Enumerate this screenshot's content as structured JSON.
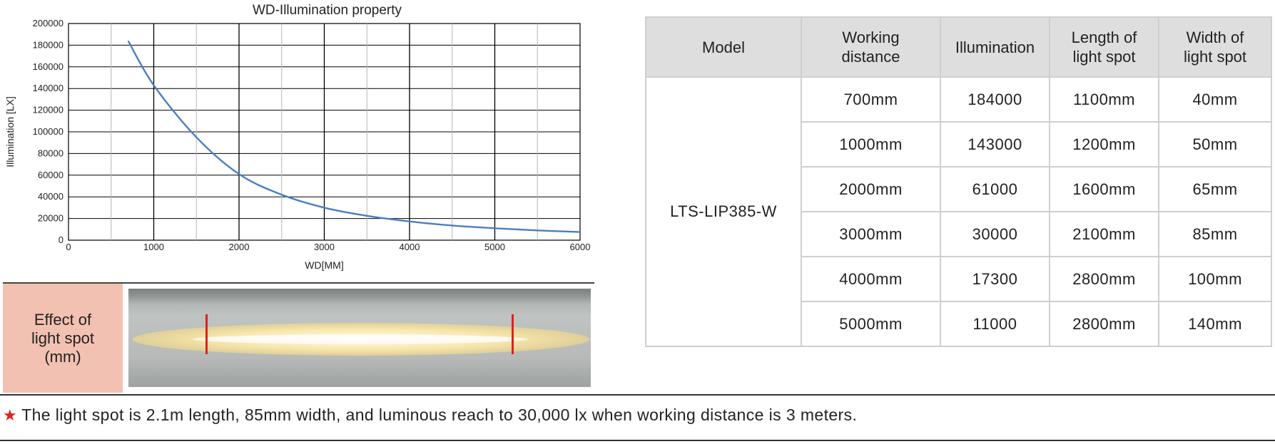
{
  "chart_data": {
    "type": "line",
    "title": "WD-Illumination property",
    "xlabel": "WD[MM]",
    "ylabel": "Illumination [LX]",
    "xlim": [
      0,
      6000
    ],
    "ylim": [
      0,
      200000
    ],
    "xticks": [
      0,
      1000,
      2000,
      3000,
      4000,
      5000,
      6000
    ],
    "yticks": [
      0,
      20000,
      40000,
      60000,
      80000,
      100000,
      120000,
      140000,
      160000,
      180000,
      200000
    ],
    "grid": true,
    "series": [
      {
        "color": "#4a7ec2",
        "x": [
          700,
          1000,
          1500,
          2000,
          2500,
          3000,
          3500,
          4000,
          4500,
          5000,
          5500,
          6000
        ],
        "y": [
          184000,
          143000,
          95000,
          61000,
          42000,
          30000,
          22500,
          17300,
          13500,
          11000,
          9000,
          7500
        ]
      }
    ]
  },
  "spot": {
    "label": "Effect of\nlight spot\n(mm)",
    "marker_color": "#e0201c"
  },
  "table": {
    "headers": [
      "Model",
      "Working\ndistance",
      "Illumination",
      "Length of\nlight spot",
      "Width of\nlight spot"
    ],
    "model": "LTS-LIP385-W",
    "rows": [
      [
        "700mm",
        "184000",
        "1100mm",
        "40mm"
      ],
      [
        "1000mm",
        "143000",
        "1200mm",
        "50mm"
      ],
      [
        "2000mm",
        "61000",
        "1600mm",
        "65mm"
      ],
      [
        "3000mm",
        "30000",
        "2100mm",
        "85mm"
      ],
      [
        "4000mm",
        "17300",
        "2800mm",
        "100mm"
      ],
      [
        "5000mm",
        "11000",
        "2800mm",
        "140mm"
      ]
    ]
  },
  "note": {
    "star": "★",
    "text": "The light spot is 2.1m length, 85mm width, and luminous reach to 30,000 lx when working distance is 3 meters."
  }
}
